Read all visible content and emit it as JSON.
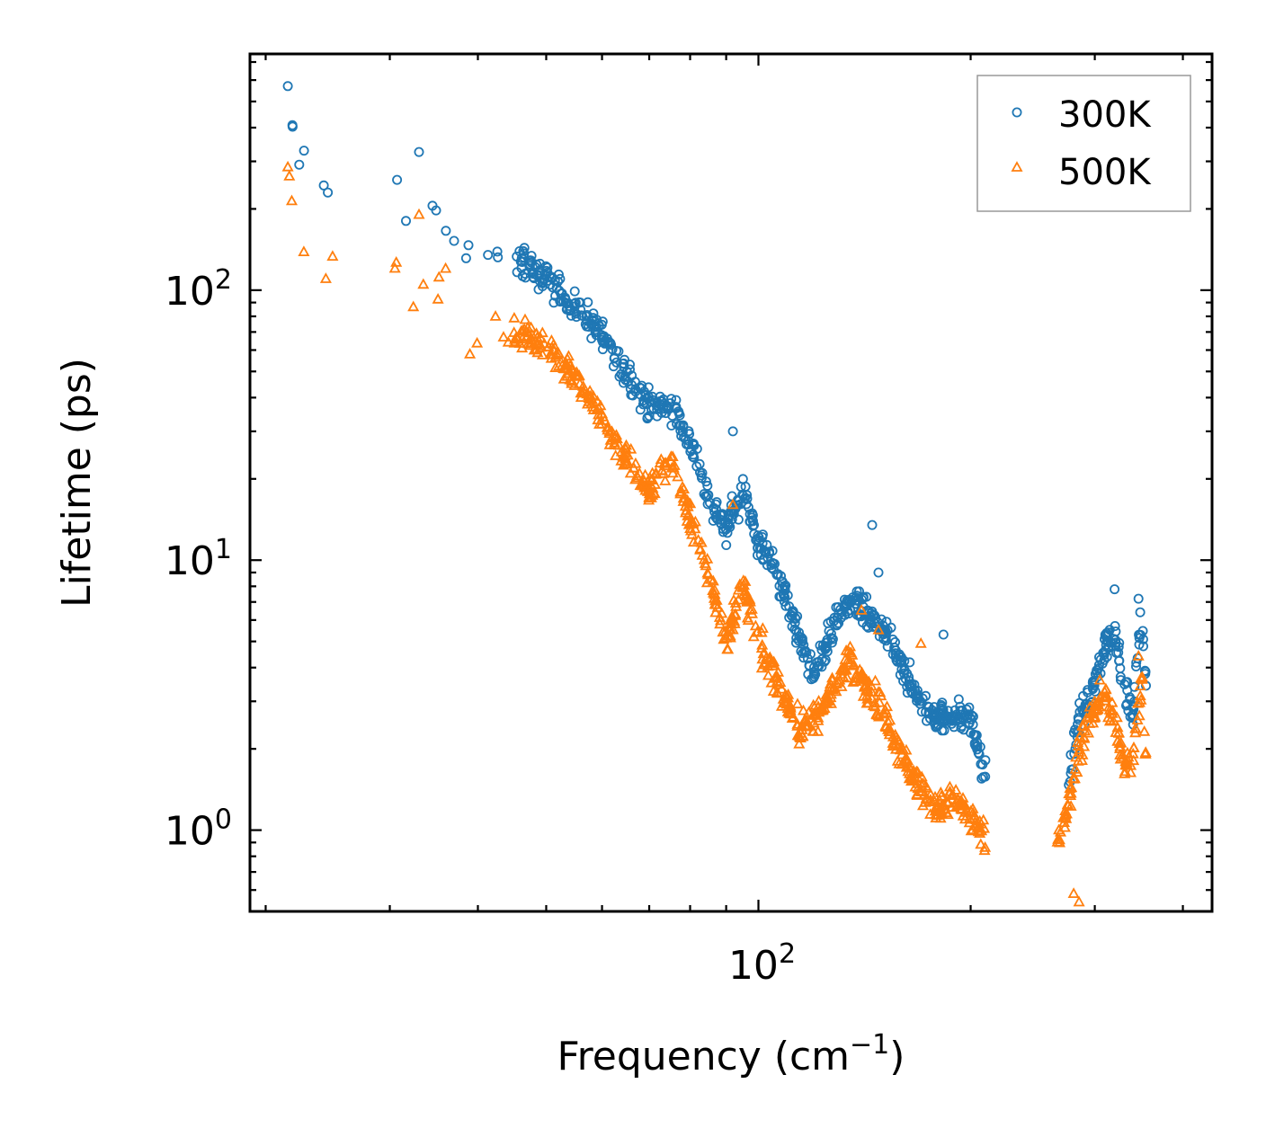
{
  "chart_data": {
    "type": "scatter",
    "title": "",
    "xlabel": "Frequency (cm",
    "xlabel_sup": "−1",
    "xlabel_close": ")",
    "ylabel": "Lifetime (ps)",
    "xscale": "log",
    "yscale": "log",
    "xlim": [
      19,
      440
    ],
    "ylim": [
      0.5,
      750
    ],
    "x_ticks": [
      {
        "value": 100,
        "base": "10",
        "exp": "2"
      }
    ],
    "y_ticks": [
      {
        "value": 1,
        "base": "10",
        "exp": "0"
      },
      {
        "value": 10,
        "base": "10",
        "exp": "1"
      },
      {
        "value": 100,
        "base": "10",
        "exp": "2"
      }
    ],
    "legend": {
      "position": "top-right"
    },
    "series": [
      {
        "name": "300K",
        "marker": "circle",
        "color": "#1f77b4",
        "trend": [
          [
            21.5,
            500
          ],
          [
            22,
            310
          ],
          [
            25,
            230
          ],
          [
            30,
            240
          ],
          [
            32,
            210
          ],
          [
            38,
            160
          ],
          [
            40,
            140
          ],
          [
            45,
            130
          ],
          [
            50,
            112
          ],
          [
            55,
            85
          ],
          [
            60,
            70
          ],
          [
            65,
            48
          ],
          [
            70,
            38
          ],
          [
            75,
            37
          ],
          [
            80,
            28
          ],
          [
            85,
            17
          ],
          [
            90,
            13
          ],
          [
            95,
            18
          ],
          [
            100,
            12
          ],
          [
            105,
            9.5
          ],
          [
            110,
            7
          ],
          [
            115,
            5
          ],
          [
            120,
            3.6
          ],
          [
            125,
            5
          ],
          [
            130,
            6.2
          ],
          [
            135,
            7
          ],
          [
            140,
            6.5
          ],
          [
            150,
            5.5
          ],
          [
            160,
            4
          ],
          [
            170,
            3
          ],
          [
            180,
            2.6
          ],
          [
            190,
            2.7
          ],
          [
            200,
            2.5
          ],
          [
            210,
            1.6
          ],
          [
            275,
            1.5
          ],
          [
            285,
            2.5
          ],
          [
            300,
            3.5
          ],
          [
            310,
            4.8
          ],
          [
            320,
            5.5
          ],
          [
            330,
            3.5
          ],
          [
            340,
            2.6
          ],
          [
            345,
            4.5
          ],
          [
            350,
            6.5
          ],
          [
            355,
            3
          ]
        ],
        "outliers": [
          [
            21.5,
            570
          ],
          [
            24.5,
            230
          ],
          [
            33,
            325
          ],
          [
            92,
            30
          ],
          [
            145,
            13.5
          ],
          [
            148,
            9
          ],
          [
            183,
            5.3
          ],
          [
            320,
            7.8
          ],
          [
            346,
            7.2
          ]
        ]
      },
      {
        "name": "500K",
        "marker": "triangle",
        "color": "#ff7f0e",
        "trend": [
          [
            21.5,
            290
          ],
          [
            22,
            170
          ],
          [
            25,
            128
          ],
          [
            30,
            140
          ],
          [
            32,
            110
          ],
          [
            38,
            80
          ],
          [
            40,
            68
          ],
          [
            45,
            70
          ],
          [
            50,
            62
          ],
          [
            55,
            48
          ],
          [
            60,
            33
          ],
          [
            65,
            24
          ],
          [
            70,
            18
          ],
          [
            75,
            24
          ],
          [
            80,
            14
          ],
          [
            85,
            9
          ],
          [
            90,
            5
          ],
          [
            95,
            8
          ],
          [
            100,
            5
          ],
          [
            105,
            3.8
          ],
          [
            110,
            2.9
          ],
          [
            115,
            2.3
          ],
          [
            120,
            2.6
          ],
          [
            125,
            3
          ],
          [
            130,
            3.6
          ],
          [
            135,
            4.3
          ],
          [
            140,
            3.6
          ],
          [
            150,
            2.8
          ],
          [
            160,
            1.9
          ],
          [
            170,
            1.4
          ],
          [
            180,
            1.2
          ],
          [
            190,
            1.3
          ],
          [
            200,
            1.1
          ],
          [
            210,
            0.9
          ],
          [
            265,
            0.88
          ],
          [
            275,
            1.2
          ],
          [
            285,
            2
          ],
          [
            300,
            2.8
          ],
          [
            310,
            3.2
          ],
          [
            320,
            2.5
          ],
          [
            330,
            1.7
          ],
          [
            340,
            1.8
          ],
          [
            345,
            2.7
          ],
          [
            350,
            3.5
          ],
          [
            355,
            1.7
          ]
        ],
        "outliers": [
          [
            21.5,
            285
          ],
          [
            33,
            190
          ],
          [
            36,
            120
          ],
          [
            92,
            16
          ],
          [
            140,
            6.5
          ],
          [
            148,
            5.5
          ],
          [
            170,
            4.9
          ],
          [
            280,
            0.58
          ],
          [
            285,
            0.54
          ],
          [
            346,
            4.4
          ]
        ]
      }
    ]
  }
}
